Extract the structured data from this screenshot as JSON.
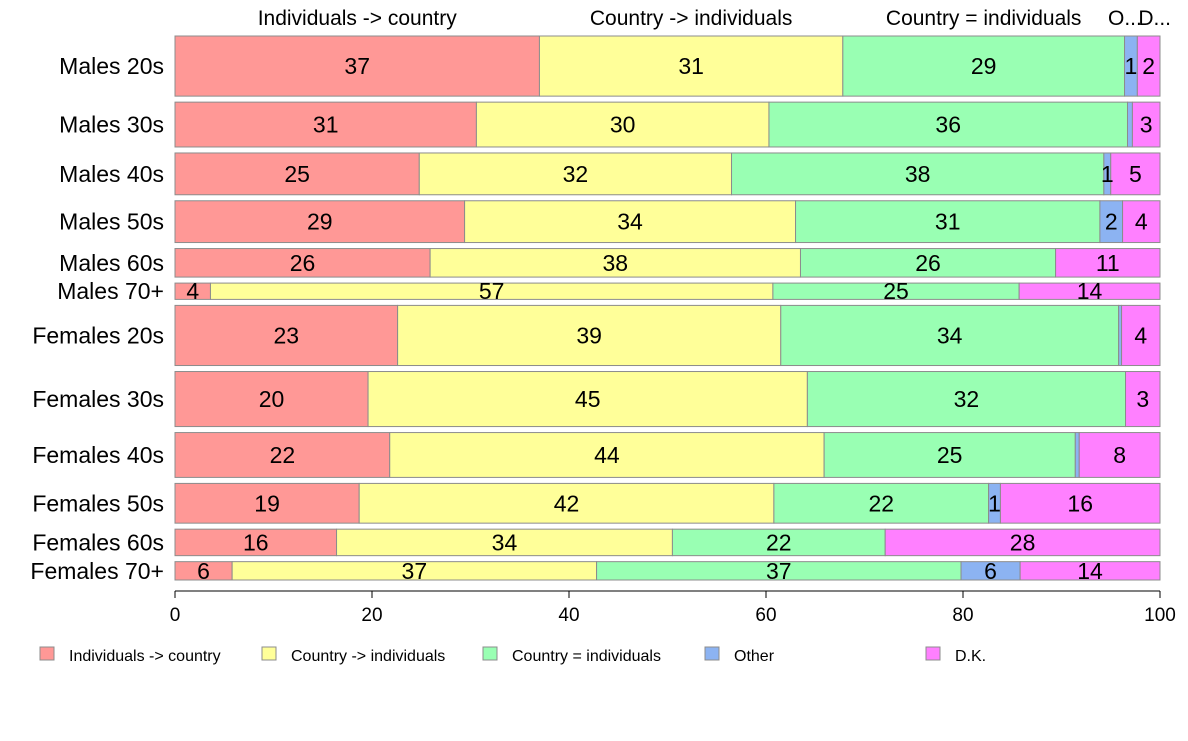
{
  "chart_data": {
    "type": "bar",
    "orientation": "horizontal",
    "stacked": "percent",
    "title": "",
    "xlabel": "",
    "ylabel": "",
    "xlim": [
      0,
      100
    ],
    "x_ticks": [
      "0",
      "20",
      "40",
      "60",
      "80",
      "100"
    ],
    "grid": false,
    "legend_position": "bottom",
    "series_names": [
      "Individuals -> country",
      "Country -> individuals",
      "Country = individuals",
      "Other",
      "D.K."
    ],
    "top_labels": [
      "Individuals -> country",
      "Country -> individuals",
      "Country = individuals",
      "O...",
      "D..."
    ],
    "colors": [
      "#ff9896",
      "#ffff99",
      "#99ffb3",
      "#8cb3f2",
      "#ff80ff"
    ],
    "categories": [
      "Males 20s",
      "Males 30s",
      "Males 40s",
      "Males 50s",
      "Males 60s",
      "Males 70+",
      "Females 20s",
      "Females 30s",
      "Females 40s",
      "Females 50s",
      "Females 60s",
      "Females 70+"
    ],
    "group_size_weights": [
      59,
      44,
      41,
      41,
      28,
      16,
      59,
      54,
      44,
      39,
      26,
      18
    ],
    "values": [
      [
        37.0,
        30.8,
        28.6,
        1.3,
        2.3
      ],
      [
        30.6,
        29.7,
        36.4,
        0.5,
        2.8
      ],
      [
        24.8,
        31.7,
        37.8,
        0.7,
        5.0
      ],
      [
        29.4,
        33.6,
        30.9,
        2.3,
        3.8
      ],
      [
        25.9,
        37.6,
        25.9,
        0.0,
        10.6
      ],
      [
        3.6,
        57.1,
        25.0,
        0.0,
        14.3
      ],
      [
        22.6,
        38.9,
        34.3,
        0.3,
        3.9
      ],
      [
        19.6,
        44.6,
        32.3,
        0.0,
        3.5
      ],
      [
        21.8,
        44.1,
        25.5,
        0.4,
        8.2
      ],
      [
        18.7,
        42.1,
        21.8,
        1.2,
        16.2
      ],
      [
        16.4,
        34.1,
        21.6,
        0.0,
        27.9
      ],
      [
        5.8,
        37.0,
        37.0,
        6.0,
        14.2
      ]
    ],
    "data_labels": [
      [
        "37",
        "31",
        "29",
        "1",
        "2"
      ],
      [
        "31",
        "30",
        "36",
        "",
        "3"
      ],
      [
        "25",
        "32",
        "38",
        "1",
        "5"
      ],
      [
        "29",
        "34",
        "31",
        "2",
        "4"
      ],
      [
        "26",
        "38",
        "26",
        "",
        "11"
      ],
      [
        "4",
        "57",
        "25",
        "",
        "14"
      ],
      [
        "23",
        "39",
        "34",
        "",
        "4"
      ],
      [
        "20",
        "45",
        "32",
        "",
        "3"
      ],
      [
        "22",
        "44",
        "25",
        "",
        "8"
      ],
      [
        "19",
        "42",
        "22",
        "1",
        "16"
      ],
      [
        "16",
        "34",
        "22",
        "",
        "28"
      ],
      [
        "6",
        "37",
        "37",
        "6",
        "14"
      ]
    ]
  }
}
